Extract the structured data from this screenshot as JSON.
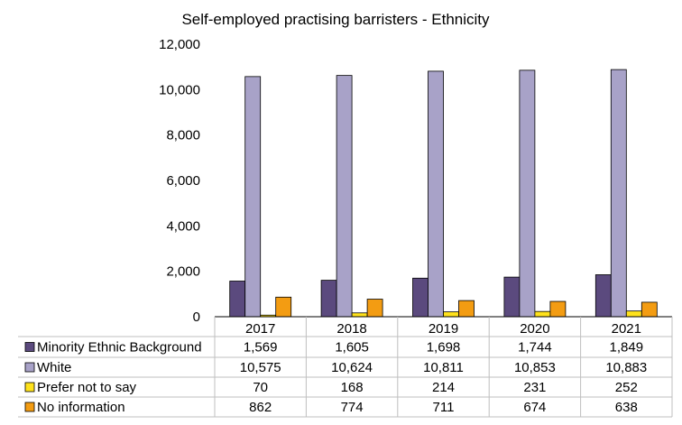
{
  "chart_data": {
    "type": "bar",
    "title": "Self-employed practising barristers - Ethnicity",
    "categories": [
      "2017",
      "2018",
      "2019",
      "2020",
      "2021"
    ],
    "series": [
      {
        "name": "Minority Ethnic Background",
        "color": "#5b4a7e",
        "values": [
          1569,
          1605,
          1698,
          1744,
          1849
        ],
        "labels": [
          "1,569",
          "1,605",
          "1,698",
          "1,744",
          "1,849"
        ]
      },
      {
        "name": "White",
        "color": "#a8a2c8",
        "values": [
          10575,
          10624,
          10811,
          10853,
          10883
        ],
        "labels": [
          "10,575",
          "10,624",
          "10,811",
          "10,853",
          "10,883"
        ]
      },
      {
        "name": "Prefer not to say",
        "color": "#ffe21c",
        "values": [
          70,
          168,
          214,
          231,
          252
        ],
        "labels": [
          "70",
          "168",
          "214",
          "231",
          "252"
        ]
      },
      {
        "name": "No information",
        "color": "#f39c12",
        "values": [
          862,
          774,
          711,
          674,
          638
        ],
        "labels": [
          "862",
          "774",
          "711",
          "674",
          "638"
        ]
      }
    ],
    "ylim": [
      0,
      12000
    ],
    "yticks": [
      "0",
      "2,000",
      "4,000",
      "6,000",
      "8,000",
      "10,000",
      "12,000"
    ],
    "data_table": true,
    "legend": "left of data table",
    "grid": false
  }
}
